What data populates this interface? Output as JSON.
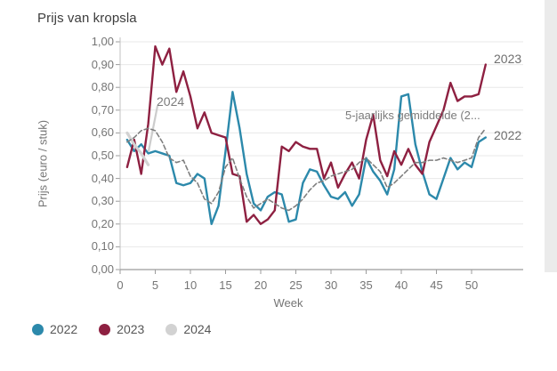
{
  "title": "Prijs van kropsla",
  "x_axis": {
    "title": "Week",
    "ticks": [
      {
        "label": "0",
        "value": 0
      },
      {
        "label": "5",
        "value": 5
      },
      {
        "label": "10",
        "value": 10
      },
      {
        "label": "15",
        "value": 15
      },
      {
        "label": "20",
        "value": 20
      },
      {
        "label": "25",
        "value": 25
      },
      {
        "label": "30",
        "value": 30
      },
      {
        "label": "35",
        "value": 35
      },
      {
        "label": "40",
        "value": 40
      },
      {
        "label": "45",
        "value": 45
      },
      {
        "label": "50",
        "value": 50
      }
    ]
  },
  "y_axis": {
    "title": "Prijs (euro / stuk)",
    "ticks": [
      {
        "label": "1,00",
        "value": 1.0
      },
      {
        "label": "0,90",
        "value": 0.9
      },
      {
        "label": "0,80",
        "value": 0.8
      },
      {
        "label": "0,70",
        "value": 0.7
      },
      {
        "label": "0,60",
        "value": 0.6
      },
      {
        "label": "0,50",
        "value": 0.5
      },
      {
        "label": "0,40",
        "value": 0.4
      },
      {
        "label": "0,30",
        "value": 0.3
      },
      {
        "label": "0,20",
        "value": 0.2
      },
      {
        "label": "0,10",
        "value": 0.1
      },
      {
        "label": "0,00",
        "value": 0.0
      }
    ]
  },
  "annotations": {
    "avg_series_label": "5-jaarlijks gemiddelde (2...",
    "label_2024": "2024",
    "label_2023_end": "2023",
    "label_2022_end": "2022"
  },
  "legend": [
    {
      "label": "2022",
      "color": "#2c89ab"
    },
    {
      "label": "2023",
      "color": "#8e2041"
    },
    {
      "label": "2024",
      "color": "#d2d2d2"
    }
  ],
  "colors": {
    "series_2022": "#2c89ab",
    "series_2023": "#8e2041",
    "series_2024": "#d2d2d2",
    "series_avg": "#7f7f7f",
    "grid": "#e8e8e8",
    "axis": "#9c9c9c",
    "axis_left": "#c2c2c2",
    "text_muted": "#757575"
  },
  "chart_data": {
    "type": "line",
    "title": "Prijs van kropsla",
    "xlabel": "Week",
    "ylabel": "Prijs (euro / stuk)",
    "xlim": [
      0,
      57
    ],
    "ylim": [
      0.0,
      1.0
    ],
    "grid": "horizontal",
    "legend_position": "bottom-left",
    "x_unit": "week_number",
    "series": [
      {
        "name": "2022",
        "color": "#2c89ab",
        "style": "solid",
        "width": 2.4,
        "start_week": 1,
        "values": [
          0.57,
          0.52,
          0.55,
          0.51,
          0.52,
          0.51,
          0.5,
          0.38,
          0.37,
          0.38,
          0.42,
          0.4,
          0.2,
          0.28,
          0.52,
          0.78,
          0.62,
          0.42,
          0.29,
          0.26,
          0.32,
          0.34,
          0.33,
          0.21,
          0.22,
          0.38,
          0.44,
          0.43,
          0.37,
          0.32,
          0.31,
          0.34,
          0.28,
          0.33,
          0.49,
          0.43,
          0.39,
          0.33,
          0.44,
          0.76,
          0.77,
          0.55,
          0.43,
          0.33,
          0.31,
          0.4,
          0.49,
          0.44,
          0.47,
          0.45,
          0.56,
          0.58
        ]
      },
      {
        "name": "2023",
        "color": "#8e2041",
        "style": "solid",
        "width": 2.4,
        "start_week": 1,
        "values": [
          0.45,
          0.57,
          0.42,
          0.64,
          0.98,
          0.9,
          0.97,
          0.78,
          0.87,
          0.76,
          0.62,
          0.69,
          0.6,
          0.59,
          0.58,
          0.42,
          0.41,
          0.21,
          0.24,
          0.2,
          0.22,
          0.26,
          0.54,
          0.52,
          0.56,
          0.54,
          0.53,
          0.53,
          0.4,
          0.47,
          0.36,
          0.42,
          0.47,
          0.4,
          0.57,
          0.68,
          0.48,
          0.41,
          0.52,
          0.46,
          0.53,
          0.46,
          0.42,
          0.56,
          0.63,
          0.7,
          0.82,
          0.74,
          0.76,
          0.76,
          0.77,
          0.9
        ]
      },
      {
        "name": "2024",
        "color": "#d2d2d2",
        "style": "solid",
        "width": 3.2,
        "start_week": 1,
        "values": [
          0.6,
          0.55,
          0.51,
          0.46
        ]
      },
      {
        "name": "5-jaarlijks gemiddelde",
        "color": "#7f7f7f",
        "style": "dashed",
        "width": 1.6,
        "start_week": 1,
        "values": [
          0.56,
          0.58,
          0.61,
          0.62,
          0.61,
          0.56,
          0.49,
          0.47,
          0.48,
          0.41,
          0.38,
          0.31,
          0.29,
          0.34,
          0.45,
          0.49,
          0.4,
          0.32,
          0.27,
          0.29,
          0.31,
          0.29,
          0.27,
          0.26,
          0.28,
          0.31,
          0.35,
          0.38,
          0.39,
          0.41,
          0.42,
          0.43,
          0.44,
          0.47,
          0.49,
          0.46,
          0.43,
          0.36,
          0.38,
          0.41,
          0.44,
          0.47,
          0.47,
          0.48,
          0.48,
          0.49,
          0.48,
          0.47,
          0.48,
          0.49,
          0.58,
          0.62
        ]
      }
    ]
  }
}
